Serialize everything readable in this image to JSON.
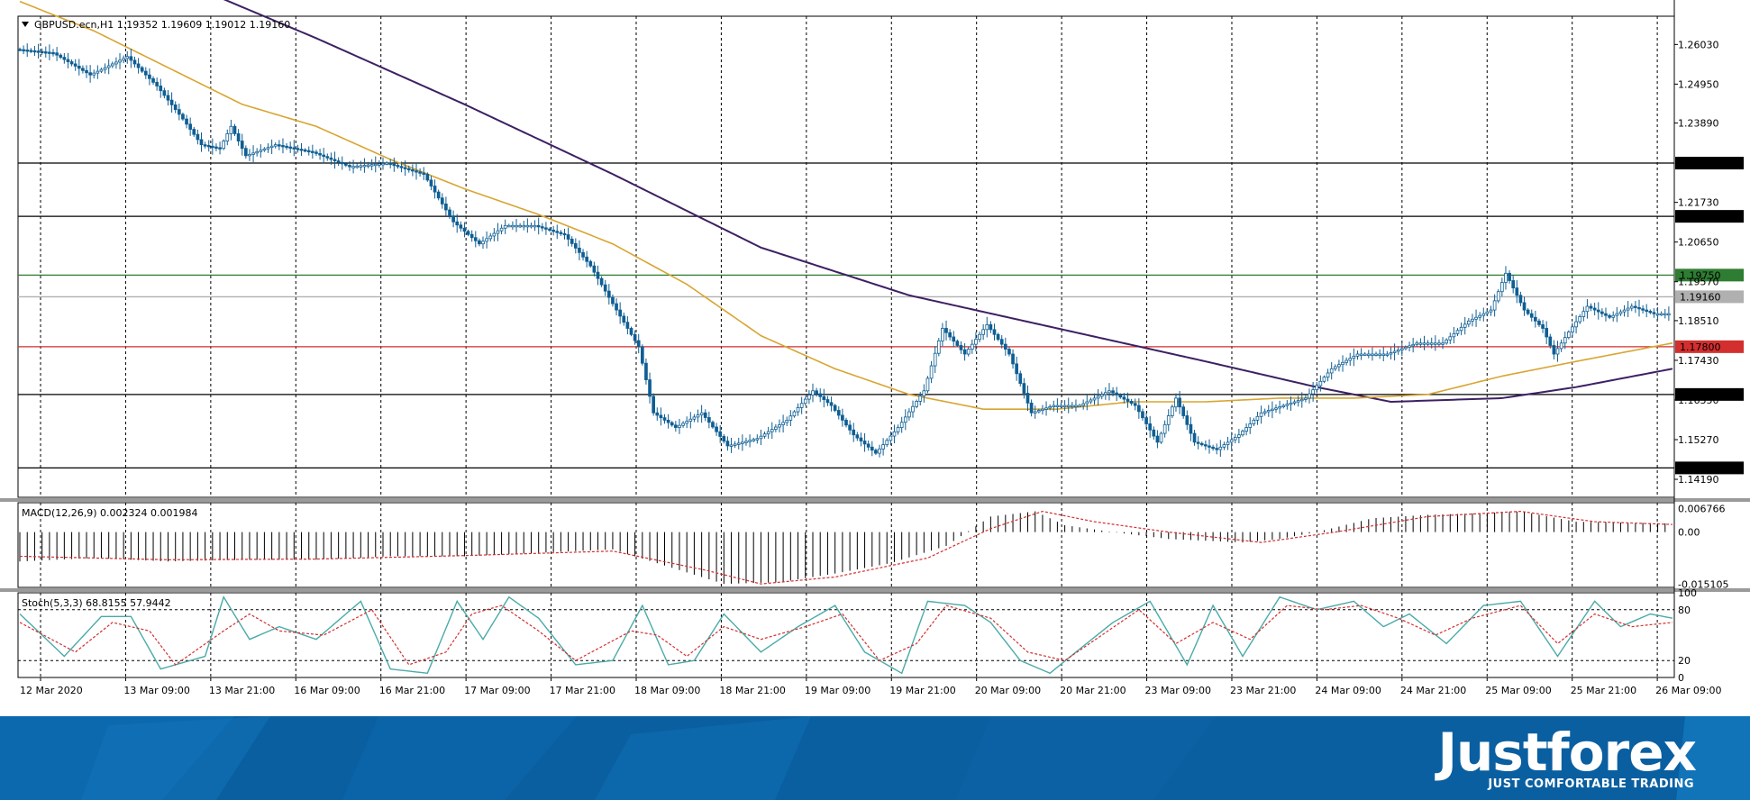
{
  "chart_data": {
    "type": "candlestick",
    "symbol_header": "GBPUSD.ecn,H1",
    "ohlc_header": "1.19352 1.19609 1.19012 1.19160",
    "price_axis": {
      "ylim": [
        1.137,
        1.2675
      ],
      "tick_labels": [
        1.2603,
        1.2495,
        1.2389,
        1.2173,
        1.2065,
        1.1957,
        1.1851,
        1.1743,
        1.1635,
        1.1527,
        1.1419
      ]
    },
    "horizontal_levels": [
      {
        "value": 1.228,
        "label": "1.22800",
        "color": "#000000"
      },
      {
        "value": 1.2135,
        "label": "1.21350",
        "color": "#000000"
      },
      {
        "value": 1.1975,
        "label": "1.19750",
        "color": "#2e7d32"
      },
      {
        "value": 1.1916,
        "label": "1.19160",
        "color": "#b0b0b0"
      },
      {
        "value": 1.178,
        "label": "1.17800",
        "color": "#d32f2f"
      },
      {
        "value": 1.165,
        "label": "1.16500",
        "color": "#000000"
      },
      {
        "value": 1.145,
        "label": "1.14500",
        "color": "#000000"
      }
    ],
    "time_axis_labels": [
      "12 Mar 2020",
      "13 Mar 09:00",
      "13 Mar 21:00",
      "16 Mar 09:00",
      "16 Mar 21:00",
      "17 Mar 09:00",
      "17 Mar 21:00",
      "18 Mar 09:00",
      "18 Mar 21:00",
      "19 Mar 09:00",
      "19 Mar 21:00",
      "20 Mar 09:00",
      "20 Mar 21:00",
      "23 Mar 09:00",
      "23 Mar 21:00",
      "24 Mar 09:00",
      "24 Mar 21:00",
      "25 Mar 09:00",
      "25 Mar 21:00",
      "26 Mar 09:00"
    ],
    "price_path": [
      [
        0,
        1.259
      ],
      [
        10,
        1.258
      ],
      [
        20,
        1.252
      ],
      [
        30,
        1.257
      ],
      [
        38,
        1.249
      ],
      [
        45,
        1.24
      ],
      [
        50,
        1.233
      ],
      [
        55,
        1.232
      ],
      [
        58,
        1.238
      ],
      [
        62,
        1.23
      ],
      [
        70,
        1.233
      ],
      [
        80,
        1.231
      ],
      [
        90,
        1.227
      ],
      [
        100,
        1.228
      ],
      [
        110,
        1.225
      ],
      [
        118,
        1.212
      ],
      [
        125,
        1.206
      ],
      [
        132,
        1.211
      ],
      [
        140,
        1.211
      ],
      [
        148,
        1.2085
      ],
      [
        155,
        1.2
      ],
      [
        162,
        1.188
      ],
      [
        168,
        1.178
      ],
      [
        172,
        1.16
      ],
      [
        178,
        1.156
      ],
      [
        185,
        1.16
      ],
      [
        192,
        1.151
      ],
      [
        200,
        1.153
      ],
      [
        208,
        1.158
      ],
      [
        215,
        1.166
      ],
      [
        220,
        1.162
      ],
      [
        226,
        1.154
      ],
      [
        232,
        1.149
      ],
      [
        238,
        1.156
      ],
      [
        245,
        1.166
      ],
      [
        250,
        1.183
      ],
      [
        256,
        1.176
      ],
      [
        262,
        1.184
      ],
      [
        268,
        1.176
      ],
      [
        274,
        1.16
      ],
      [
        280,
        1.162
      ],
      [
        287,
        1.162
      ],
      [
        295,
        1.166
      ],
      [
        302,
        1.162
      ],
      [
        308,
        1.152
      ],
      [
        313,
        1.164
      ],
      [
        318,
        1.152
      ],
      [
        324,
        1.15
      ],
      [
        330,
        1.154
      ],
      [
        336,
        1.16
      ],
      [
        342,
        1.162
      ],
      [
        348,
        1.164
      ],
      [
        355,
        1.172
      ],
      [
        362,
        1.176
      ],
      [
        370,
        1.176
      ],
      [
        378,
        1.179
      ],
      [
        385,
        1.179
      ],
      [
        392,
        1.185
      ],
      [
        398,
        1.188
      ],
      [
        402,
        1.198
      ],
      [
        407,
        1.188
      ],
      [
        412,
        1.183
      ],
      [
        415,
        1.176
      ],
      [
        419,
        1.182
      ],
      [
        424,
        1.189
      ],
      [
        430,
        1.186
      ],
      [
        436,
        1.189
      ],
      [
        442,
        1.187
      ],
      [
        446,
        1.187
      ]
    ],
    "ma_fast_path": [
      [
        0,
        1.272
      ],
      [
        20,
        1.264
      ],
      [
        40,
        1.254
      ],
      [
        60,
        1.244
      ],
      [
        80,
        1.238
      ],
      [
        100,
        1.229
      ],
      [
        120,
        1.221
      ],
      [
        140,
        1.214
      ],
      [
        160,
        1.206
      ],
      [
        180,
        1.195
      ],
      [
        200,
        1.181
      ],
      [
        220,
        1.172
      ],
      [
        240,
        1.165
      ],
      [
        260,
        1.161
      ],
      [
        280,
        1.161
      ],
      [
        300,
        1.163
      ],
      [
        320,
        1.163
      ],
      [
        340,
        1.164
      ],
      [
        360,
        1.164
      ],
      [
        380,
        1.165
      ],
      [
        400,
        1.17
      ],
      [
        420,
        1.174
      ],
      [
        446,
        1.179
      ]
    ],
    "ma_slow_path": [
      [
        0,
        1.295
      ],
      [
        40,
        1.279
      ],
      [
        80,
        1.262
      ],
      [
        120,
        1.244
      ],
      [
        160,
        1.225
      ],
      [
        200,
        1.205
      ],
      [
        240,
        1.192
      ],
      [
        280,
        1.183
      ],
      [
        320,
        1.174
      ],
      [
        350,
        1.167
      ],
      [
        370,
        1.163
      ],
      [
        400,
        1.164
      ],
      [
        420,
        1.167
      ],
      [
        446,
        1.172
      ]
    ],
    "macd": {
      "label": "MACD(12,26,9) 0.002324 0.001984",
      "tick_labels": [
        "0.006766",
        "0.00",
        "-0.015105"
      ],
      "ylim": [
        -0.016,
        0.0085
      ],
      "path": [
        [
          0,
          -0.0085
        ],
        [
          20,
          -0.0075
        ],
        [
          40,
          -0.0085
        ],
        [
          60,
          -0.008
        ],
        [
          80,
          -0.008
        ],
        [
          100,
          -0.007
        ],
        [
          120,
          -0.007
        ],
        [
          140,
          -0.006
        ],
        [
          160,
          -0.005
        ],
        [
          175,
          -0.01
        ],
        [
          190,
          -0.015
        ],
        [
          205,
          -0.0145
        ],
        [
          220,
          -0.012
        ],
        [
          235,
          -0.009
        ],
        [
          250,
          -0.004
        ],
        [
          262,
          0.0045
        ],
        [
          274,
          0.006
        ],
        [
          282,
          0.002
        ],
        [
          295,
          0.0
        ],
        [
          310,
          -0.002
        ],
        [
          330,
          -0.003
        ],
        [
          340,
          -0.002
        ],
        [
          350,
          0.0
        ],
        [
          365,
          0.004
        ],
        [
          380,
          0.005
        ],
        [
          395,
          0.0055
        ],
        [
          405,
          0.006
        ],
        [
          420,
          0.003
        ],
        [
          446,
          0.0025
        ]
      ],
      "signal_path": [
        [
          0,
          -0.007
        ],
        [
          40,
          -0.008
        ],
        [
          80,
          -0.0078
        ],
        [
          120,
          -0.0068
        ],
        [
          160,
          -0.0055
        ],
        [
          185,
          -0.011
        ],
        [
          200,
          -0.015
        ],
        [
          220,
          -0.013
        ],
        [
          245,
          -0.0075
        ],
        [
          262,
          0.001
        ],
        [
          276,
          0.006
        ],
        [
          290,
          0.003
        ],
        [
          310,
          0.0
        ],
        [
          335,
          -0.003
        ],
        [
          355,
          0.0
        ],
        [
          380,
          0.0045
        ],
        [
          405,
          0.006
        ],
        [
          425,
          0.003
        ],
        [
          446,
          0.0022
        ]
      ]
    },
    "stochastic": {
      "label": "Stoch(5,3,3) 68.8155 57.9442",
      "tick_labels": [
        "100",
        "80",
        "20",
        "0"
      ],
      "ylim": [
        0,
        100
      ],
      "main_path": [
        [
          0,
          75
        ],
        [
          12,
          25
        ],
        [
          22,
          72
        ],
        [
          30,
          72
        ],
        [
          38,
          10
        ],
        [
          50,
          25
        ],
        [
          55,
          95
        ],
        [
          62,
          45
        ],
        [
          70,
          60
        ],
        [
          80,
          45
        ],
        [
          92,
          90
        ],
        [
          100,
          10
        ],
        [
          110,
          5
        ],
        [
          118,
          90
        ],
        [
          125,
          45
        ],
        [
          132,
          95
        ],
        [
          140,
          70
        ],
        [
          150,
          15
        ],
        [
          160,
          20
        ],
        [
          168,
          85
        ],
        [
          175,
          15
        ],
        [
          182,
          20
        ],
        [
          190,
          75
        ],
        [
          200,
          30
        ],
        [
          210,
          60
        ],
        [
          220,
          85
        ],
        [
          228,
          30
        ],
        [
          238,
          5
        ],
        [
          245,
          90
        ],
        [
          255,
          85
        ],
        [
          262,
          65
        ],
        [
          270,
          20
        ],
        [
          278,
          5
        ],
        [
          285,
          30
        ],
        [
          295,
          65
        ],
        [
          305,
          90
        ],
        [
          315,
          15
        ],
        [
          322,
          85
        ],
        [
          330,
          25
        ],
        [
          340,
          95
        ],
        [
          350,
          80
        ],
        [
          360,
          90
        ],
        [
          368,
          60
        ],
        [
          375,
          75
        ],
        [
          385,
          40
        ],
        [
          395,
          85
        ],
        [
          405,
          90
        ],
        [
          415,
          25
        ],
        [
          425,
          90
        ],
        [
          432,
          60
        ],
        [
          440,
          75
        ],
        [
          446,
          70
        ]
      ],
      "signal_path": [
        [
          0,
          65
        ],
        [
          15,
          30
        ],
        [
          25,
          65
        ],
        [
          35,
          55
        ],
        [
          42,
          15
        ],
        [
          55,
          55
        ],
        [
          62,
          75
        ],
        [
          70,
          55
        ],
        [
          82,
          50
        ],
        [
          95,
          80
        ],
        [
          105,
          15
        ],
        [
          115,
          30
        ],
        [
          122,
          75
        ],
        [
          130,
          85
        ],
        [
          140,
          55
        ],
        [
          150,
          20
        ],
        [
          165,
          55
        ],
        [
          172,
          50
        ],
        [
          180,
          25
        ],
        [
          190,
          60
        ],
        [
          200,
          45
        ],
        [
          212,
          60
        ],
        [
          222,
          75
        ],
        [
          232,
          20
        ],
        [
          242,
          40
        ],
        [
          250,
          85
        ],
        [
          262,
          70
        ],
        [
          272,
          30
        ],
        [
          282,
          20
        ],
        [
          292,
          50
        ],
        [
          302,
          80
        ],
        [
          312,
          40
        ],
        [
          322,
          65
        ],
        [
          332,
          45
        ],
        [
          342,
          85
        ],
        [
          352,
          80
        ],
        [
          362,
          85
        ],
        [
          372,
          70
        ],
        [
          382,
          50
        ],
        [
          392,
          70
        ],
        [
          405,
          85
        ],
        [
          415,
          40
        ],
        [
          425,
          75
        ],
        [
          435,
          60
        ],
        [
          446,
          65
        ]
      ]
    }
  },
  "brand": {
    "logo": "Justforex",
    "slogan": "JUST COMFORTABLE TRADING"
  },
  "colors": {
    "bull": "#1f7bb6",
    "bear": "#0f5e93",
    "ma_fast": "#d8a531",
    "ma_slow": "#3d2063",
    "macd_signal": "#d32f2f",
    "stoch_main": "#4aaaa8",
    "stoch_signal": "#d32f2f",
    "banner": "#0a5fa0"
  }
}
